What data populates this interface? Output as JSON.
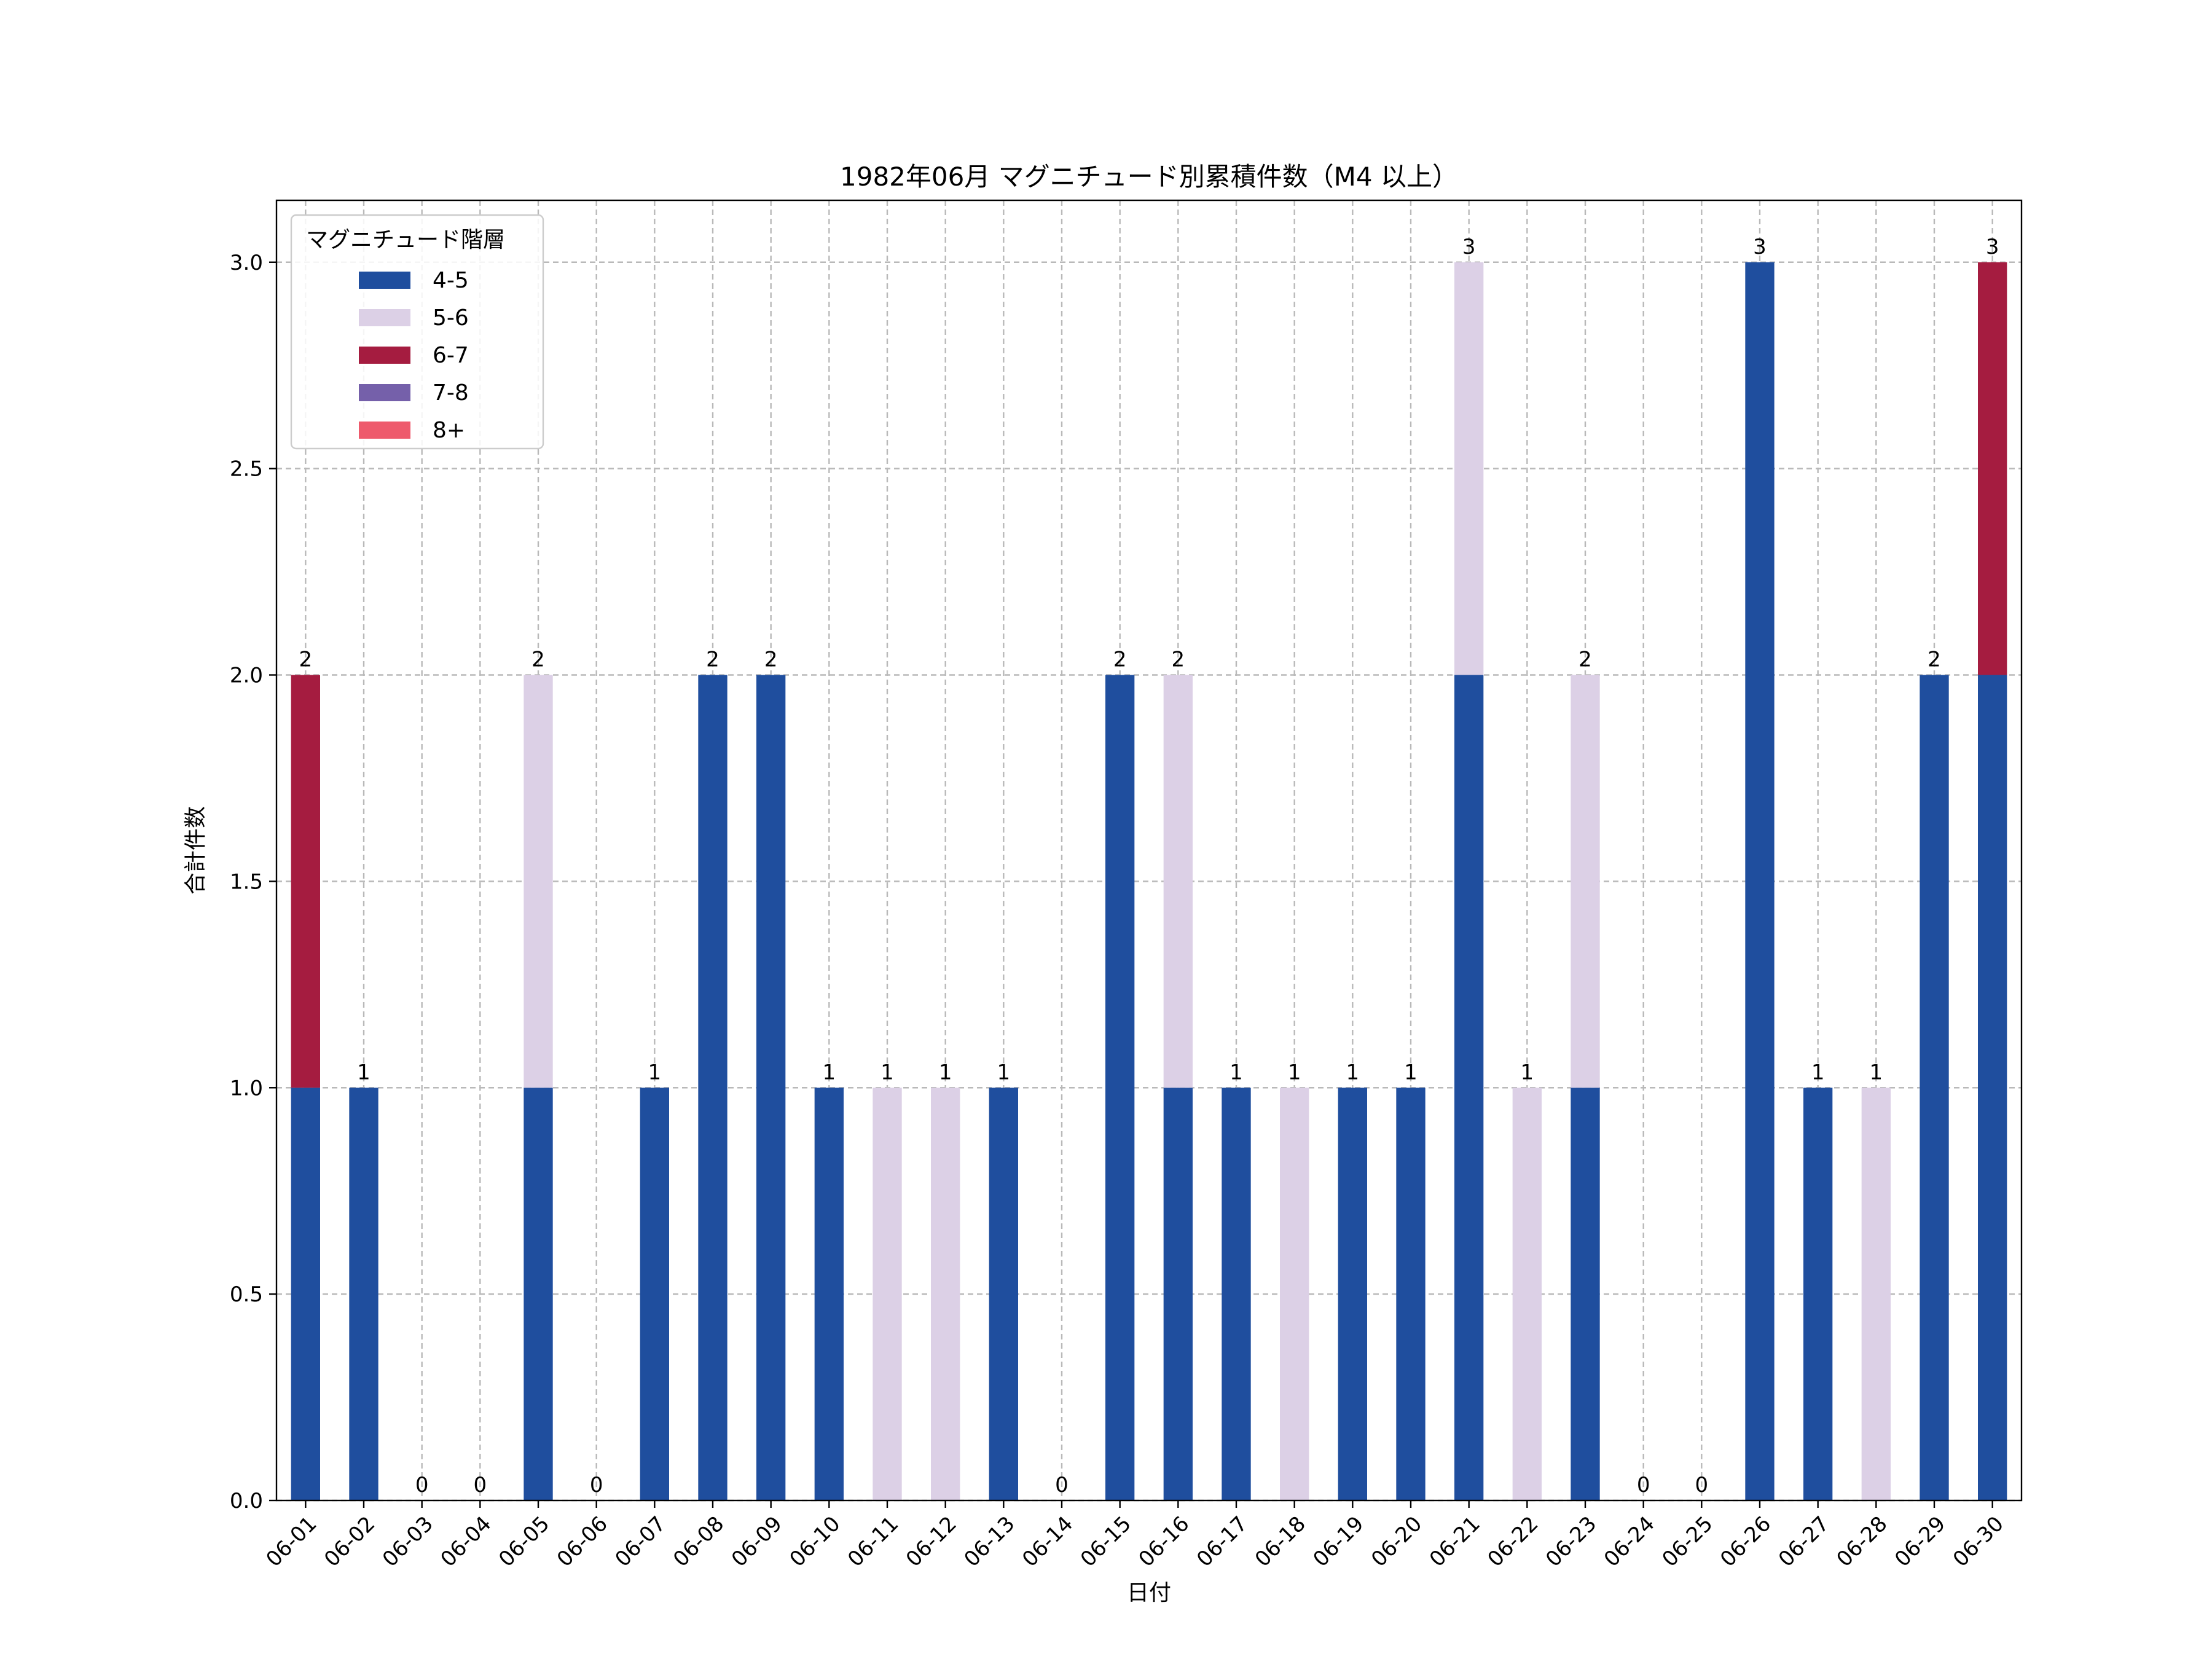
{
  "chart_data": {
    "type": "bar",
    "stacked": true,
    "title": "1982年06月 マグニチュード別累積件数（M4 以上）",
    "xlabel": "日付",
    "ylabel": "合計件数",
    "ylim": [
      0,
      3.15
    ],
    "yticks": [
      "0.0",
      "0.5",
      "1.0",
      "1.5",
      "2.0",
      "2.5",
      "3.0"
    ],
    "grid": true,
    "legend": {
      "title": "マグニチュード階層",
      "position": "top-left"
    },
    "categories": [
      "06-01",
      "06-02",
      "06-03",
      "06-04",
      "06-05",
      "06-06",
      "06-07",
      "06-08",
      "06-09",
      "06-10",
      "06-11",
      "06-12",
      "06-13",
      "06-14",
      "06-15",
      "06-16",
      "06-17",
      "06-18",
      "06-19",
      "06-20",
      "06-21",
      "06-22",
      "06-23",
      "06-24",
      "06-25",
      "06-26",
      "06-27",
      "06-28",
      "06-29",
      "06-30"
    ],
    "series": [
      {
        "name": "4-5",
        "color": "#1f4e9e",
        "values": [
          1,
          1,
          0,
          0,
          1,
          0,
          1,
          2,
          2,
          1,
          0,
          0,
          1,
          0,
          2,
          1,
          1,
          0,
          1,
          1,
          2,
          0,
          1,
          0,
          0,
          3,
          1,
          0,
          2,
          2
        ]
      },
      {
        "name": "5-6",
        "color": "#dcd0e6",
        "values": [
          0,
          0,
          0,
          0,
          1,
          0,
          0,
          0,
          0,
          0,
          1,
          1,
          0,
          0,
          0,
          1,
          0,
          1,
          0,
          0,
          1,
          1,
          1,
          0,
          0,
          0,
          0,
          1,
          0,
          0
        ]
      },
      {
        "name": "6-7",
        "color": "#a51c40",
        "values": [
          1,
          0,
          0,
          0,
          0,
          0,
          0,
          0,
          0,
          0,
          0,
          0,
          0,
          0,
          0,
          0,
          0,
          0,
          0,
          0,
          0,
          0,
          0,
          0,
          0,
          0,
          0,
          0,
          0,
          1
        ]
      },
      {
        "name": "7-8",
        "color": "#7560aa",
        "values": [
          0,
          0,
          0,
          0,
          0,
          0,
          0,
          0,
          0,
          0,
          0,
          0,
          0,
          0,
          0,
          0,
          0,
          0,
          0,
          0,
          0,
          0,
          0,
          0,
          0,
          0,
          0,
          0,
          0,
          0
        ]
      },
      {
        "name": "8+",
        "color": "#ee5a6c",
        "values": [
          0,
          0,
          0,
          0,
          0,
          0,
          0,
          0,
          0,
          0,
          0,
          0,
          0,
          0,
          0,
          0,
          0,
          0,
          0,
          0,
          0,
          0,
          0,
          0,
          0,
          0,
          0,
          0,
          0,
          0
        ]
      }
    ],
    "totals": [
      "2",
      "1",
      "0",
      "0",
      "2",
      "0",
      "1",
      "2",
      "2",
      "1",
      "1",
      "1",
      "1",
      "0",
      "2",
      "2",
      "1",
      "1",
      "1",
      "1",
      "3",
      "1",
      "2",
      "0",
      "0",
      "3",
      "1",
      "1",
      "2",
      "3"
    ]
  }
}
